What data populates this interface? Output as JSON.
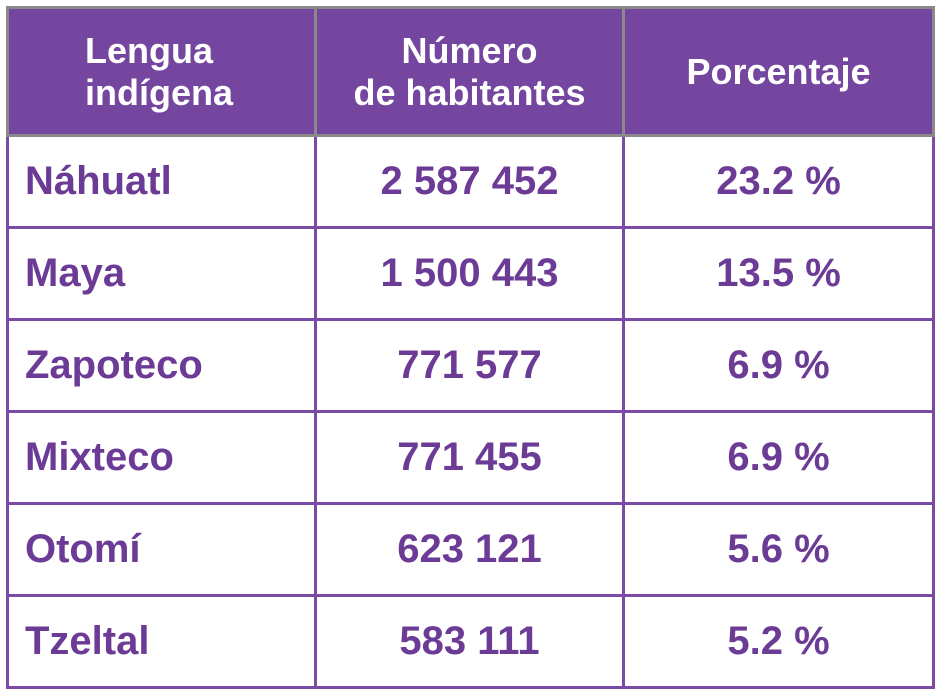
{
  "table": {
    "headers": [
      {
        "lines": [
          "Lengua",
          "indígena"
        ]
      },
      {
        "lines": [
          "Número",
          "de habitantes"
        ]
      },
      {
        "lines": [
          "Porcentaje"
        ]
      }
    ],
    "rows": [
      {
        "lengua": "Náhuatl",
        "habitantes": "2 587 452",
        "porcentaje": "23.2 %"
      },
      {
        "lengua": "Maya",
        "habitantes": "1 500 443",
        "porcentaje": "13.5 %"
      },
      {
        "lengua": "Zapoteco",
        "habitantes": "771 577",
        "porcentaje": "6.9 %"
      },
      {
        "lengua": "Mixteco",
        "habitantes": "771 455",
        "porcentaje": "6.9 %"
      },
      {
        "lengua": "Otomí",
        "habitantes": "623 121",
        "porcentaje": "5.6 %"
      },
      {
        "lengua": "Tzeltal",
        "habitantes": "583 111",
        "porcentaje": "5.2 %"
      }
    ]
  },
  "colors": {
    "header_bg": "#7546a0",
    "header_text": "#ffffff",
    "cell_text": "#6b3b96",
    "border": "#7a4aa6"
  },
  "chart_data": {
    "type": "table",
    "columns": [
      "Lengua indígena",
      "Número de habitantes",
      "Porcentaje"
    ],
    "rows": [
      [
        "Náhuatl",
        2587452,
        23.2
      ],
      [
        "Maya",
        1500443,
        13.5
      ],
      [
        "Zapoteco",
        771577,
        6.9
      ],
      [
        "Mixteco",
        771455,
        6.9
      ],
      [
        "Otomí",
        623121,
        5.6
      ],
      [
        "Tzeltal",
        583111,
        5.2
      ]
    ]
  }
}
